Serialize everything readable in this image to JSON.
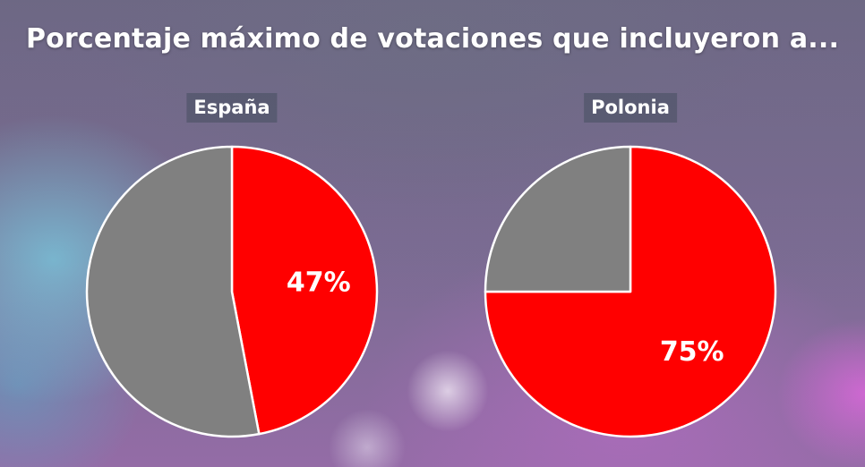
{
  "title": "Porcentaje máximo de votaciones que incluyeron a...",
  "colors": {
    "highlight": "#ff0000",
    "rest": "#808080",
    "border": "#ffffff"
  },
  "chart_data": [
    {
      "type": "pie",
      "title": "España",
      "slices": [
        {
          "value": 47,
          "color": "#ff0000",
          "label": "47%"
        },
        {
          "value": 53,
          "color": "#808080",
          "label": ""
        }
      ]
    },
    {
      "type": "pie",
      "title": "Polonia",
      "slices": [
        {
          "value": 75,
          "color": "#ff0000",
          "label": "75%"
        },
        {
          "value": 25,
          "color": "#808080",
          "label": ""
        }
      ]
    }
  ]
}
